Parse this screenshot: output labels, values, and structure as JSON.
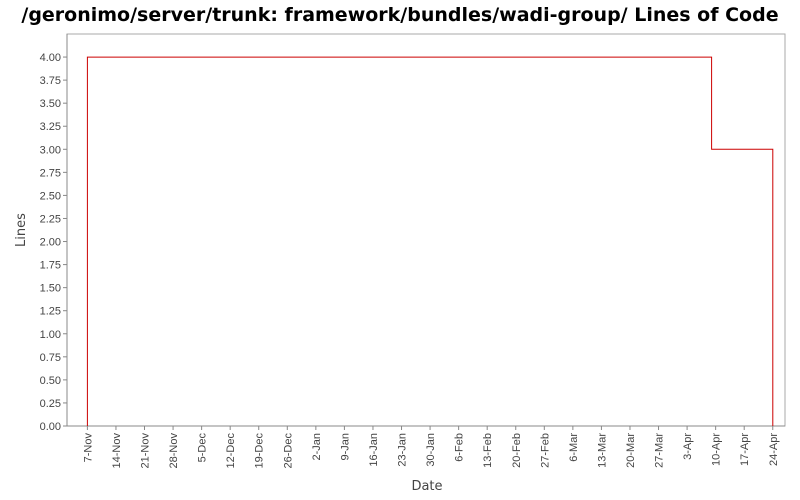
{
  "chart_data": {
    "type": "line",
    "title": "/geronimo/server/trunk: framework/bundles/wadi-group/ Lines of Code",
    "xlabel": "Date",
    "ylabel": "Lines",
    "x_tick_labels": [
      "7-Nov",
      "14-Nov",
      "21-Nov",
      "28-Nov",
      "5-Dec",
      "12-Dec",
      "19-Dec",
      "26-Dec",
      "2-Jan",
      "9-Jan",
      "16-Jan",
      "23-Jan",
      "30-Jan",
      "6-Feb",
      "13-Feb",
      "20-Feb",
      "27-Feb",
      "6-Mar",
      "13-Mar",
      "20-Mar",
      "27-Mar",
      "3-Apr",
      "10-Apr",
      "17-Apr",
      "24-Apr"
    ],
    "y_tick_labels": [
      "0.00",
      "0.25",
      "0.50",
      "0.75",
      "1.00",
      "1.25",
      "1.50",
      "1.75",
      "2.00",
      "2.25",
      "2.50",
      "2.75",
      "3.00",
      "3.25",
      "3.50",
      "3.75",
      "4.00"
    ],
    "ylim": [
      0,
      4.25
    ],
    "xlim": [
      "2nd Nov",
      "27-Apr"
    ],
    "grid": false,
    "step": true,
    "series": [
      {
        "color": "#cc0000",
        "points": [
          {
            "x": "7-Nov",
            "y": 0
          },
          {
            "x": "7-Nov",
            "y": 4
          },
          {
            "x": "9-Apr",
            "y": 4
          },
          {
            "x": "9-Apr",
            "y": 3
          },
          {
            "x": "24-Apr",
            "y": 3
          },
          {
            "x": "24-Apr",
            "y": 0
          }
        ]
      }
    ],
    "colors": {
      "plot_border": "#aaaaaa",
      "axis": "#888888",
      "line": "#cc0000"
    }
  }
}
